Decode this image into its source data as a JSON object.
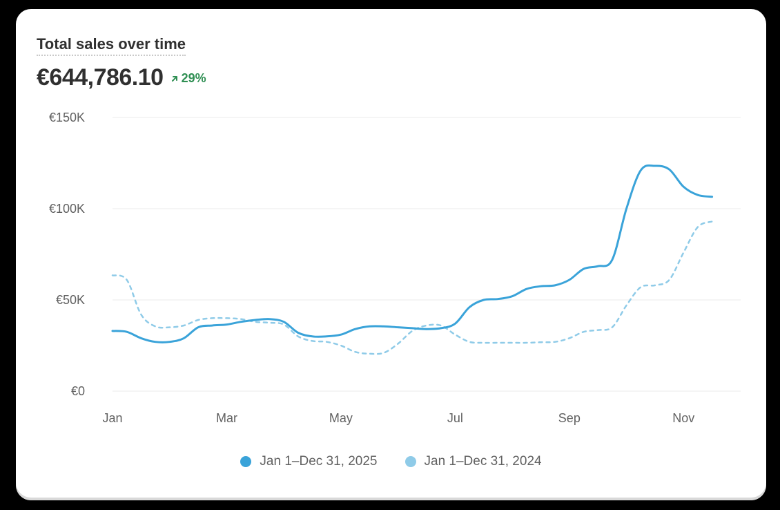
{
  "card": {
    "title": "Total sales over time",
    "metric_value": "€644,786.10",
    "delta_text": "29%",
    "delta_icon": "arrow-up-right-icon",
    "delta_color": "#2f8f53"
  },
  "legend": [
    {
      "label": "Jan 1–Dec 31, 2025",
      "color": "#3aa3d9"
    },
    {
      "label": "Jan 1–Dec 31, 2024",
      "color": "#8fcbe8"
    }
  ],
  "chart_data": {
    "type": "line",
    "title": "Total sales over time",
    "xlabel": "",
    "ylabel": "",
    "ylim": [
      0,
      150000
    ],
    "yticks": [
      {
        "value": 0,
        "label": "€0"
      },
      {
        "value": 50000,
        "label": "€50K"
      },
      {
        "value": 100000,
        "label": "€100K"
      },
      {
        "value": 150000,
        "label": "€150K"
      }
    ],
    "xlim": [
      0,
      11
    ],
    "xticks": [
      {
        "value": 0,
        "label": "Jan"
      },
      {
        "value": 2,
        "label": "Mar"
      },
      {
        "value": 4,
        "label": "May"
      },
      {
        "value": 6,
        "label": "Jul"
      },
      {
        "value": 8,
        "label": "Sep"
      },
      {
        "value": 10,
        "label": "Nov"
      }
    ],
    "grid": true,
    "legend_position": "bottom",
    "series": [
      {
        "name": "Jan 1–Dec 31, 2025",
        "style": "solid",
        "color": "#3aa3d9",
        "points": [
          [
            0,
            33000
          ],
          [
            0.25,
            32500
          ],
          [
            0.5,
            29000
          ],
          [
            0.75,
            27000
          ],
          [
            1.0,
            27000
          ],
          [
            1.25,
            29000
          ],
          [
            1.5,
            35000
          ],
          [
            1.75,
            36000
          ],
          [
            2.0,
            36500
          ],
          [
            2.25,
            38000
          ],
          [
            2.5,
            39000
          ],
          [
            2.75,
            39500
          ],
          [
            3.0,
            38000
          ],
          [
            3.25,
            32000
          ],
          [
            3.5,
            30000
          ],
          [
            3.75,
            30000
          ],
          [
            4.0,
            31000
          ],
          [
            4.25,
            34000
          ],
          [
            4.5,
            35500
          ],
          [
            4.75,
            35500
          ],
          [
            5.0,
            35000
          ],
          [
            5.25,
            34500
          ],
          [
            5.5,
            34000
          ],
          [
            5.75,
            34500
          ],
          [
            6.0,
            37000
          ],
          [
            6.25,
            46000
          ],
          [
            6.5,
            50000
          ],
          [
            6.75,
            50500
          ],
          [
            7.0,
            52000
          ],
          [
            7.25,
            56000
          ],
          [
            7.5,
            57500
          ],
          [
            7.75,
            58000
          ],
          [
            8.0,
            61000
          ],
          [
            8.25,
            67000
          ],
          [
            8.5,
            68500
          ],
          [
            8.75,
            72000
          ],
          [
            9.0,
            100000
          ],
          [
            9.25,
            121000
          ],
          [
            9.5,
            123500
          ],
          [
            9.75,
            121500
          ],
          [
            10.0,
            112000
          ],
          [
            10.25,
            107500
          ],
          [
            10.5,
            106500
          ]
        ]
      },
      {
        "name": "Jan 1–Dec 31, 2024",
        "style": "dashed",
        "color": "#8fcbe8",
        "points": [
          [
            0,
            63500
          ],
          [
            0.25,
            61000
          ],
          [
            0.5,
            42000
          ],
          [
            0.75,
            35500
          ],
          [
            1.0,
            35000
          ],
          [
            1.25,
            36000
          ],
          [
            1.5,
            39000
          ],
          [
            1.75,
            40000
          ],
          [
            2.0,
            40000
          ],
          [
            2.25,
            39500
          ],
          [
            2.5,
            38000
          ],
          [
            2.75,
            37500
          ],
          [
            3.0,
            36500
          ],
          [
            3.25,
            30000
          ],
          [
            3.5,
            27500
          ],
          [
            3.75,
            27000
          ],
          [
            4.0,
            25000
          ],
          [
            4.25,
            21500
          ],
          [
            4.5,
            20500
          ],
          [
            4.75,
            21000
          ],
          [
            5.0,
            26000
          ],
          [
            5.25,
            33000
          ],
          [
            5.5,
            36000
          ],
          [
            5.75,
            36000
          ],
          [
            6.0,
            31000
          ],
          [
            6.25,
            27000
          ],
          [
            6.5,
            26500
          ],
          [
            6.75,
            26500
          ],
          [
            7.0,
            26500
          ],
          [
            7.25,
            26500
          ],
          [
            7.5,
            26800
          ],
          [
            7.75,
            27000
          ],
          [
            8.0,
            29000
          ],
          [
            8.25,
            32500
          ],
          [
            8.5,
            33500
          ],
          [
            8.75,
            35000
          ],
          [
            9.0,
            47000
          ],
          [
            9.25,
            57000
          ],
          [
            9.5,
            58000
          ],
          [
            9.75,
            61000
          ],
          [
            10.0,
            76000
          ],
          [
            10.25,
            90000
          ],
          [
            10.5,
            93000
          ]
        ]
      }
    ]
  }
}
